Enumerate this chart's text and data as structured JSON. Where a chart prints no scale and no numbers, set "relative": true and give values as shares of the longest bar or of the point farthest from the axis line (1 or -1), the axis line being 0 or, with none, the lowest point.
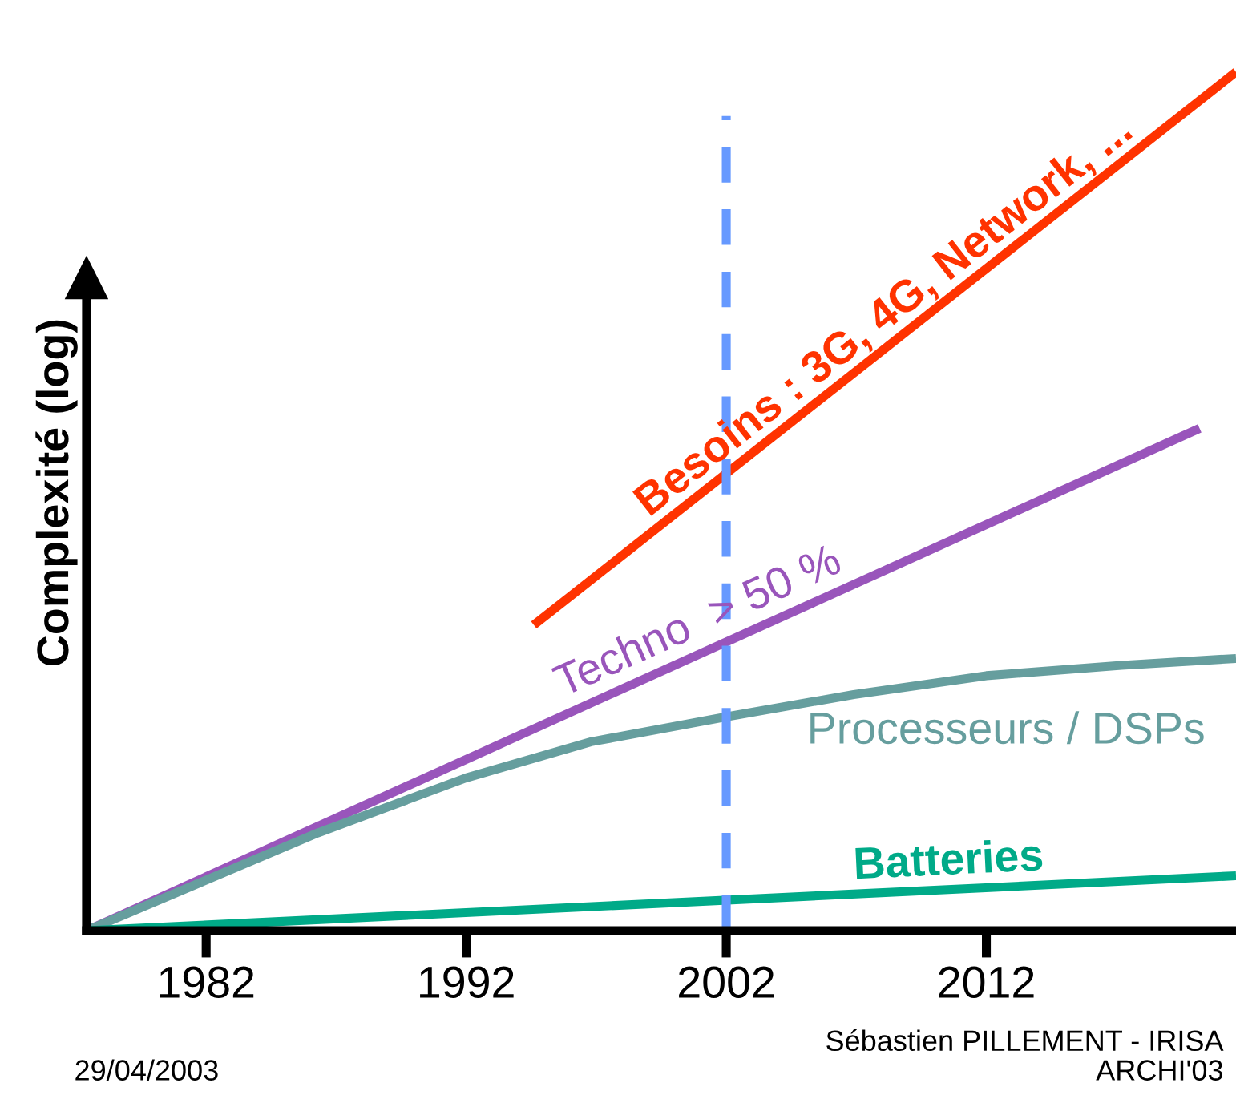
{
  "chart_data": {
    "type": "line",
    "ylabel": "Complexité (log)",
    "relative": true,
    "xlim": [
      1977.4,
      2021.6
    ],
    "xticks": [
      1982,
      1992,
      2002,
      2012
    ],
    "grid": false,
    "marker": "none",
    "line_style": "solid",
    "series": [
      {
        "name": "Besoins : 3G, 4G, Network, ...",
        "color": "#ff3300",
        "x": [
          1994.6,
          2021.6
        ],
        "values": [
          0.356,
          1
        ]
      },
      {
        "name": "Techno  > 50 %",
        "color": "#9955bb",
        "x": [
          1977.4,
          2020.2
        ],
        "values": [
          0,
          0.585
        ]
      },
      {
        "name": "Processeurs / DSPs",
        "color": "#669e9e",
        "x": [
          1977.4,
          1982,
          1986.3,
          1992,
          1996.8,
          2002,
          2006.9,
          2012,
          2017.2,
          2021.6
        ],
        "values": [
          0,
          0.059,
          0.114,
          0.178,
          0.22,
          0.249,
          0.275,
          0.297,
          0.309,
          0.317
        ]
      },
      {
        "name": "Batteries",
        "color": "#00aa88",
        "x": [
          1977.4,
          2021.6
        ],
        "values": [
          0,
          0.064
        ]
      }
    ],
    "ref_lines": [
      {
        "axis": "x",
        "value": 2002,
        "color": "#6699ff",
        "line_style": "dashed"
      }
    ],
    "annotations": [
      "29/04/2003",
      "Sébastien PILLEMENT - IRISA",
      "ARCHI'03"
    ]
  }
}
